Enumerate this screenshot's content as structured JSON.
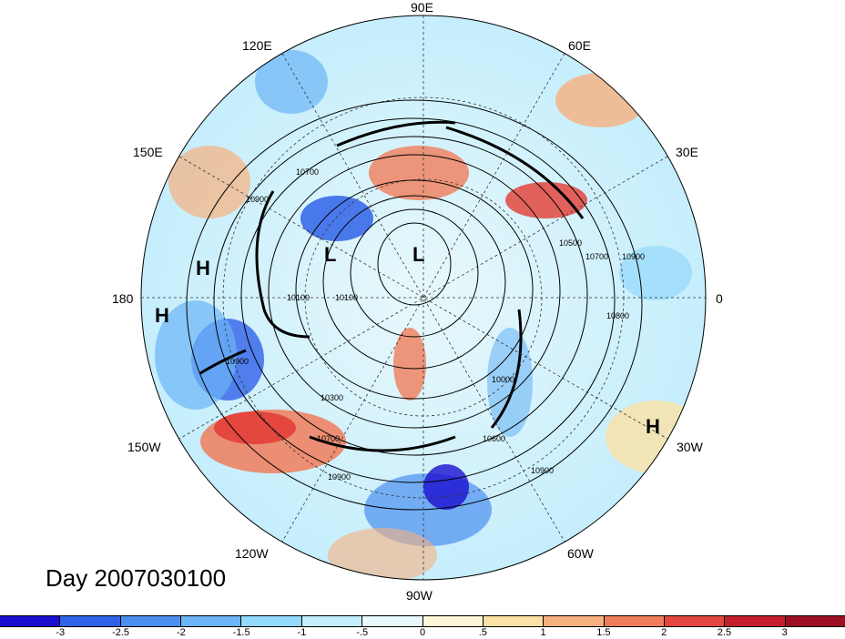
{
  "map": {
    "longitude_labels": [
      "90E",
      "120E",
      "60E",
      "150E",
      "30E",
      "180",
      "0",
      "150W",
      "30W",
      "120W",
      "60W",
      "90W"
    ],
    "pressure_centers": [
      "H",
      "H",
      "L",
      "L",
      "H"
    ],
    "contour_labels": [
      "10700",
      "10900",
      "10100",
      "10100",
      "10500",
      "10700",
      "10900",
      "10800",
      "10900",
      "10300",
      "10000",
      "10600",
      "10700",
      "10900",
      "10900"
    ],
    "day_label": "Day 2007030100"
  },
  "colorbar": {
    "tick_labels": [
      "-3",
      "-2.5",
      "-2",
      "-1.5",
      "-1",
      "-.5",
      "0",
      ".5",
      "1",
      "1.5",
      "2",
      "2.5",
      "3"
    ],
    "colors": [
      "#1a0fd0",
      "#2f62e8",
      "#4b8ff0",
      "#6cb5f6",
      "#93d9fb",
      "#c5eefc",
      "#e8f8fb",
      "#fdf6d8",
      "#fbe1a5",
      "#f6b07e",
      "#f07d5a",
      "#e3473e",
      "#c41e2c",
      "#9c0f22"
    ]
  }
}
